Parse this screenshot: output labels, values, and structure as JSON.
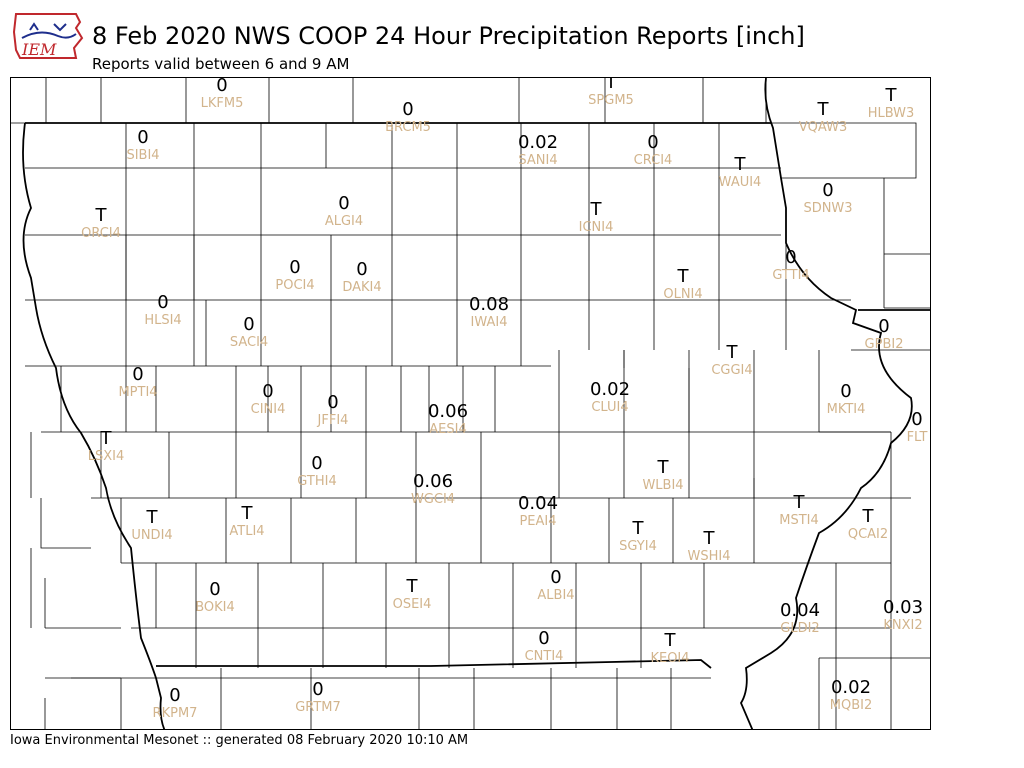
{
  "header": {
    "title": "8 Feb 2020 NWS COOP 24 Hour Precipitation Reports [inch]",
    "subtitle": "Reports valid between 6 and 9 AM",
    "logo_text": "IEM"
  },
  "footer": {
    "text": "Iowa Environmental Mesonet :: generated 08 February 2020 10:10 AM"
  },
  "colors": {
    "value": "#000000",
    "station_id": "#d2b48c",
    "logo_red": "#c0282d",
    "logo_blue": "#1e2e8c"
  },
  "stations": [
    {
      "id": "LKFM5",
      "value": "0"
    },
    {
      "id": "SPGM5",
      "value": "T"
    },
    {
      "id": "HLBW3",
      "value": "T"
    },
    {
      "id": "VQAW3",
      "value": "T"
    },
    {
      "id": "BRCM5",
      "value": "0"
    },
    {
      "id": "SIBI4",
      "value": "0"
    },
    {
      "id": "SANI4",
      "value": "0.02"
    },
    {
      "id": "CRCI4",
      "value": "0"
    },
    {
      "id": "WAUI4",
      "value": "T"
    },
    {
      "id": "SDNW3",
      "value": "0"
    },
    {
      "id": "ORCI4",
      "value": "T"
    },
    {
      "id": "ALGI4",
      "value": "0"
    },
    {
      "id": "ICNI4",
      "value": "T"
    },
    {
      "id": "GTTI4",
      "value": "0"
    },
    {
      "id": "POCI4",
      "value": "0"
    },
    {
      "id": "DAKI4",
      "value": "0"
    },
    {
      "id": "OLNI4",
      "value": "T"
    },
    {
      "id": "HLSI4",
      "value": "0"
    },
    {
      "id": "IWAI4",
      "value": "0.08"
    },
    {
      "id": "SACI4",
      "value": "0"
    },
    {
      "id": "GPBI2",
      "value": "0"
    },
    {
      "id": "CGGI4",
      "value": "T"
    },
    {
      "id": "MPTI4",
      "value": "0"
    },
    {
      "id": "CLUI4",
      "value": "0.02"
    },
    {
      "id": "CINI4",
      "value": "0"
    },
    {
      "id": "JFFI4",
      "value": "0"
    },
    {
      "id": "MKTI4",
      "value": "0"
    },
    {
      "id": "AESI4",
      "value": "0.06"
    },
    {
      "id": "FLT",
      "value": "0"
    },
    {
      "id": "LSXI4",
      "value": "T"
    },
    {
      "id": "GTHI4",
      "value": "0"
    },
    {
      "id": "WLBI4",
      "value": "T"
    },
    {
      "id": "WGCI4",
      "value": "0.06"
    },
    {
      "id": "PEAI4",
      "value": "0.04"
    },
    {
      "id": "MSTI4",
      "value": "T"
    },
    {
      "id": "UNDI4",
      "value": "T"
    },
    {
      "id": "ATLI4",
      "value": "T"
    },
    {
      "id": "QCAI2",
      "value": "T"
    },
    {
      "id": "SGYI4",
      "value": "T"
    },
    {
      "id": "WSHI4",
      "value": "T"
    },
    {
      "id": "BOKI4",
      "value": "0"
    },
    {
      "id": "OSEI4",
      "value": "T"
    },
    {
      "id": "ALBI4",
      "value": "0"
    },
    {
      "id": "GLDI2",
      "value": "0.04"
    },
    {
      "id": "KNXI2",
      "value": "0.03"
    },
    {
      "id": "CNTI4",
      "value": "0"
    },
    {
      "id": "KEOI4",
      "value": "T"
    },
    {
      "id": "RKPM7",
      "value": "0"
    },
    {
      "id": "GRTM7",
      "value": "0"
    },
    {
      "id": "MQBI2",
      "value": "0.02"
    }
  ]
}
